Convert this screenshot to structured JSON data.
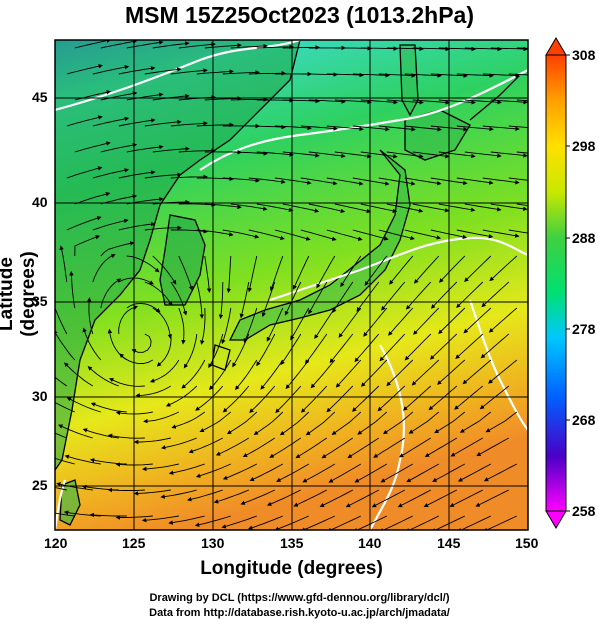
{
  "title": "MSM 15Z25Oct2023 (1013.2hPa)",
  "map": {
    "xlabel": "Longitude (degrees)",
    "ylabel": "Latitude  (degrees)",
    "lon_ticks": [
      "120",
      "125",
      "130",
      "135",
      "140",
      "145",
      "150"
    ],
    "lat_ticks": [
      "25",
      "30",
      "35",
      "40",
      "45"
    ],
    "lon_range": [
      120,
      150
    ],
    "lat_range": [
      22.4,
      47.6
    ],
    "field_colors": [
      "#2f8fe8",
      "#39d9b8",
      "#2ed160",
      "#7fe020",
      "#e6e81a",
      "#f0b020",
      "#f08c28"
    ]
  },
  "colorbar": {
    "ticks": [
      "308",
      "298",
      "288",
      "278",
      "268",
      "258"
    ],
    "range": [
      258,
      308
    ],
    "colors": [
      "#ff00ff",
      "#4a00c8",
      "#0060ff",
      "#00c8ff",
      "#00e070",
      "#40d040",
      "#c8e800",
      "#ffe000",
      "#ffa000",
      "#ff4000"
    ]
  },
  "credits": {
    "line1": "Drawing by DCL (https://www.gfd-dennou.org/library/dcl/)",
    "line2": "Data from http://database.rish.kyoto-u.ac.jp/arch/jmadata/"
  }
}
